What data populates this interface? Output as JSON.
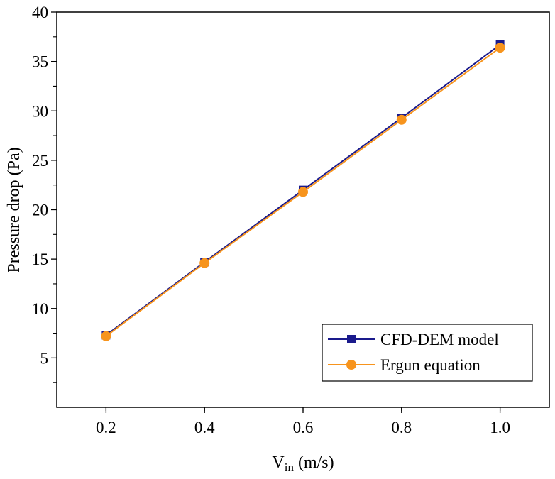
{
  "chart_data": {
    "type": "line",
    "title": "",
    "xlabel_main": "V",
    "xlabel_sub": "in",
    "xlabel_unit": " (m/s)",
    "ylabel": "Pressure drop (Pa)",
    "xlim": [
      0.1,
      1.1
    ],
    "ylim": [
      0,
      40
    ],
    "x_ticks": [
      0.2,
      0.4,
      0.6,
      0.8,
      1.0
    ],
    "x_tick_labels": [
      "0.2",
      "0.4",
      "0.6",
      "0.8",
      "1.0"
    ],
    "y_ticks": [
      5,
      10,
      15,
      20,
      25,
      30,
      35,
      40
    ],
    "y_tick_labels": [
      "5",
      "10",
      "15",
      "20",
      "25",
      "30",
      "35",
      "40"
    ],
    "grid": false,
    "legend_position": "bottom-right",
    "series": [
      {
        "name": "CFD-DEM model",
        "x": [
          0.2,
          0.4,
          0.6,
          0.8,
          1.0
        ],
        "values": [
          7.3,
          14.7,
          22.0,
          29.3,
          36.7
        ],
        "color": "#1a1a8c",
        "marker": "square"
      },
      {
        "name": "Ergun equation",
        "x": [
          0.2,
          0.4,
          0.6,
          0.8,
          1.0
        ],
        "values": [
          7.2,
          14.6,
          21.8,
          29.1,
          36.4
        ],
        "color": "#f7941d",
        "marker": "circle"
      }
    ]
  }
}
